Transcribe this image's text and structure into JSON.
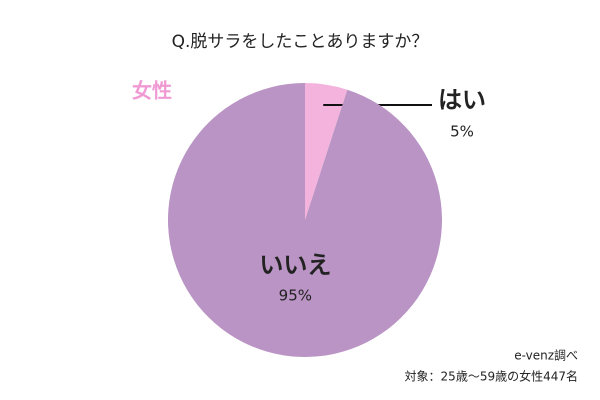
{
  "chart_data": {
    "type": "pie",
    "title": "Q.脱サラをしたことありますか？",
    "subtitle": "女性",
    "categories": [
      "はい",
      "いいえ"
    ],
    "values": [
      5,
      95
    ],
    "value_labels": [
      "5%",
      "95%"
    ],
    "colors": [
      "#f4b3dc",
      "#b994c4"
    ],
    "notes": [
      "e-venz調べ",
      "対象：25歳〜59歳の女性447名"
    ]
  }
}
